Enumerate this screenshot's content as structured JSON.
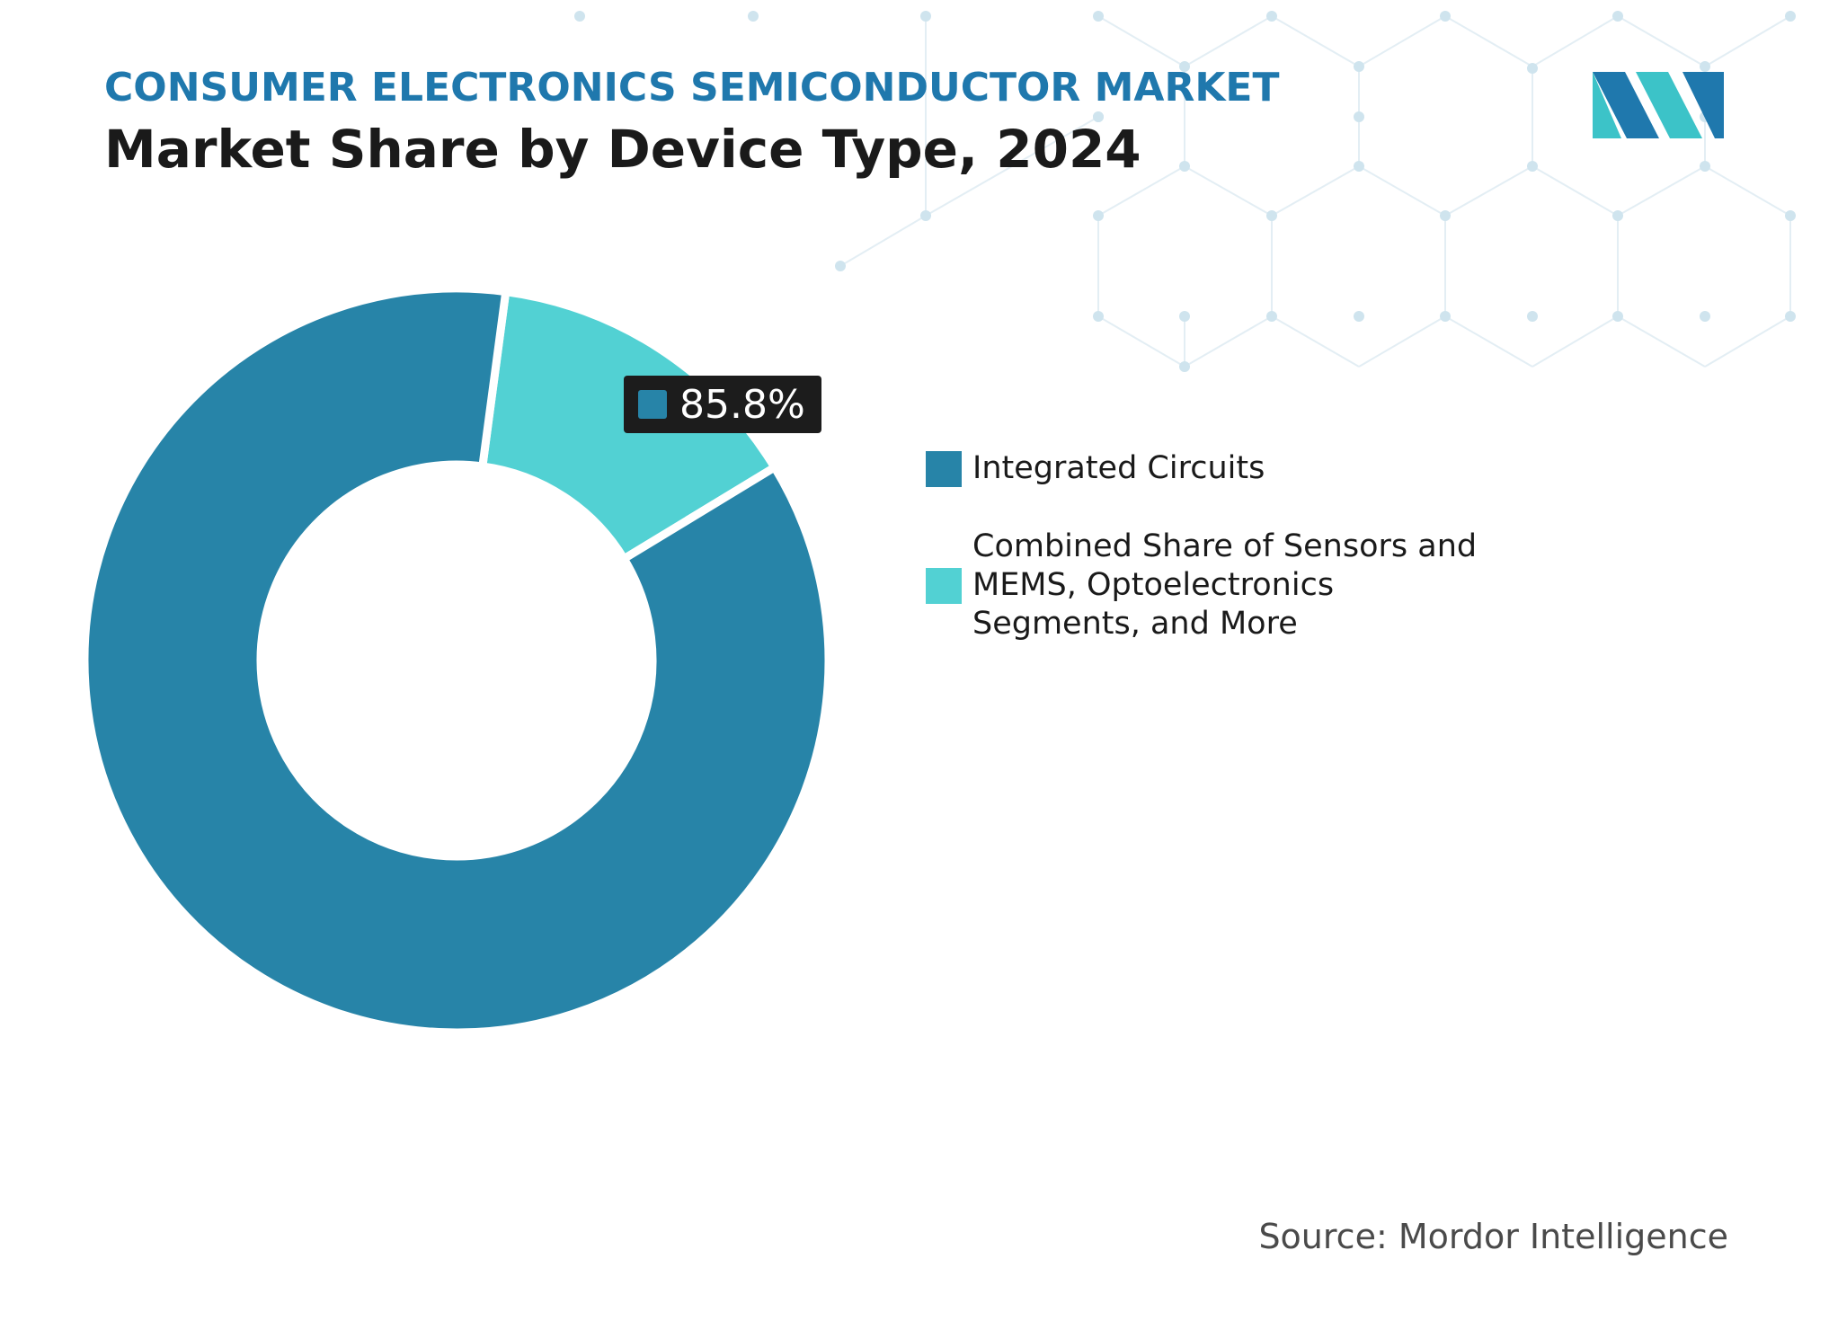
{
  "header": {
    "supertitle": "CONSUMER ELECTRONICS SEMICONDUCTOR MARKET",
    "title": "Market Share by Device Type, 2024"
  },
  "tooltip": {
    "value": "85.8%"
  },
  "legend": {
    "items": [
      {
        "label": "Integrated Circuits",
        "color": "#2784a8"
      },
      {
        "label": "Combined Share of Sensors and MEMS, Optoelectronics Segments, and More",
        "color": "#52d1d3"
      }
    ]
  },
  "footer": {
    "source": "Source: Mordor Intelligence"
  },
  "logo": {
    "icon": "mordor-intelligence-logo-icon",
    "colors": [
      "#1f78ad",
      "#3cc3c8"
    ]
  },
  "chart_data": {
    "type": "pie",
    "variant": "donut",
    "categories": [
      "Integrated Circuits",
      "Combined Share of Sensors and MEMS, Optoelectronics Segments, and More"
    ],
    "values": [
      85.8,
      14.2
    ],
    "unit": "%",
    "colors": [
      "#2784a8",
      "#52d1d3"
    ],
    "title": "Market Share by Device Type, 2024",
    "data_labels": [
      "85.8%"
    ],
    "legend_position": "right"
  }
}
